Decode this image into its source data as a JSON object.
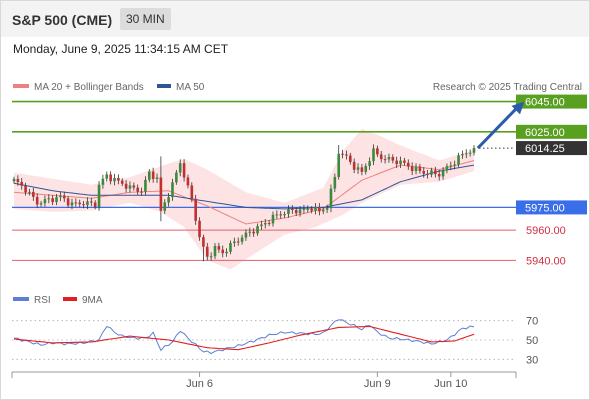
{
  "header": {
    "instrument": "S&P 500 (CME)",
    "interval": "30 MIN",
    "timestamp": "Monday, June 9, 2025 11:34:15 AM CET"
  },
  "colors": {
    "resistance": "#5aa020",
    "current": "#333333",
    "pivot": "#3a6ee8",
    "support": "#e06070",
    "band_fill": "#fde3e3",
    "ma20": "#f08080",
    "ma50": "#2f5597",
    "candle_up": "#3b8a3b",
    "candle_down": "#c03030",
    "rsi": "#5b7fd6",
    "rsi_ma": "#e02020",
    "arrow": "#2a5caa"
  },
  "chart_data": [
    {
      "type": "candlestick",
      "title": "",
      "legend": [
        "MA 20 + Bollinger Bands",
        "MA 50"
      ],
      "credit": "Research © 2025 Trading Central",
      "ylim": [
        5925,
        6052
      ],
      "x_ticks": [
        {
          "label": "Jun 6",
          "index": 48
        },
        {
          "label": "Jun 9",
          "index": 94
        },
        {
          "label": "Jun 10",
          "index": 113
        }
      ],
      "levels": [
        {
          "label": "6045.00",
          "value": 6045,
          "kind": "resistance"
        },
        {
          "label": "6025.00",
          "value": 6025,
          "kind": "resistance"
        },
        {
          "label": "6014.25",
          "value": 6014.25,
          "kind": "current"
        },
        {
          "label": "5975.00",
          "value": 5975,
          "kind": "pivot"
        },
        {
          "label": "5960.00",
          "value": 5960,
          "kind": "support"
        },
        {
          "label": "5940.00",
          "value": 5940,
          "kind": "support"
        }
      ],
      "close_pivots": [
        [
          0,
          5993
        ],
        [
          3,
          5987
        ],
        [
          6,
          5978
        ],
        [
          9,
          5980
        ],
        [
          12,
          5982
        ],
        [
          15,
          5977
        ],
        [
          18,
          5978
        ],
        [
          21,
          5977
        ],
        [
          22,
          5990
        ],
        [
          24,
          5996
        ],
        [
          27,
          5992
        ],
        [
          30,
          5988
        ],
        [
          33,
          5986
        ],
        [
          35,
          5998
        ],
        [
          37,
          5994
        ],
        [
          38,
          5972
        ],
        [
          40,
          5984
        ],
        [
          41,
          5990
        ],
        [
          43,
          6005
        ],
        [
          44,
          5996
        ],
        [
          46,
          5980
        ],
        [
          47,
          5968
        ],
        [
          48,
          5955
        ],
        [
          49,
          5948
        ],
        [
          50,
          5942
        ],
        [
          52,
          5948
        ],
        [
          54,
          5945
        ],
        [
          57,
          5952
        ],
        [
          60,
          5957
        ],
        [
          64,
          5963
        ],
        [
          68,
          5970
        ],
        [
          72,
          5973
        ],
        [
          75,
          5973
        ],
        [
          77,
          5975
        ],
        [
          79,
          5972
        ],
        [
          81,
          5976
        ],
        [
          83,
          5995
        ],
        [
          84,
          6012
        ],
        [
          86,
          6008
        ],
        [
          88,
          6002
        ],
        [
          90,
          5998
        ],
        [
          93,
          6012
        ],
        [
          95,
          6008
        ],
        [
          98,
          6006
        ],
        [
          100,
          6005
        ],
        [
          103,
          6001
        ],
        [
          106,
          5998
        ],
        [
          110,
          5997
        ],
        [
          113,
          6003
        ],
        [
          116,
          6010
        ],
        [
          119,
          6014
        ]
      ],
      "ma20_pivots": [
        [
          0,
          5985
        ],
        [
          10,
          5983
        ],
        [
          20,
          5981
        ],
        [
          30,
          5985
        ],
        [
          40,
          5986
        ],
        [
          50,
          5976
        ],
        [
          60,
          5964
        ],
        [
          70,
          5968
        ],
        [
          80,
          5974
        ],
        [
          90,
          5993
        ],
        [
          100,
          6003
        ],
        [
          110,
          6000
        ],
        [
          119,
          6006
        ]
      ],
      "ma50_pivots": [
        [
          0,
          5991
        ],
        [
          10,
          5986
        ],
        [
          20,
          5983
        ],
        [
          30,
          5983
        ],
        [
          40,
          5983
        ],
        [
          50,
          5979
        ],
        [
          60,
          5975
        ],
        [
          70,
          5974
        ],
        [
          80,
          5975
        ],
        [
          90,
          5980
        ],
        [
          100,
          5992
        ],
        [
          110,
          5999
        ],
        [
          119,
          6003
        ]
      ],
      "band_upper_pivots": [
        [
          0,
          5998
        ],
        [
          10,
          5994
        ],
        [
          20,
          5990
        ],
        [
          30,
          5995
        ],
        [
          40,
          6004
        ],
        [
          44,
          6007
        ],
        [
          50,
          6000
        ],
        [
          60,
          5985
        ],
        [
          70,
          5978
        ],
        [
          80,
          5988
        ],
        [
          85,
          6012
        ],
        [
          90,
          6027
        ],
        [
          95,
          6022
        ],
        [
          100,
          6016
        ],
        [
          110,
          6006
        ],
        [
          119,
          6013
        ]
      ],
      "band_lower_pivots": [
        [
          0,
          5974
        ],
        [
          10,
          5972
        ],
        [
          20,
          5973
        ],
        [
          30,
          5978
        ],
        [
          38,
          5972
        ],
        [
          44,
          5962
        ],
        [
          50,
          5940
        ],
        [
          56,
          5934
        ],
        [
          62,
          5944
        ],
        [
          70,
          5957
        ],
        [
          78,
          5962
        ],
        [
          85,
          5970
        ],
        [
          90,
          5978
        ],
        [
          100,
          5990
        ],
        [
          110,
          5992
        ],
        [
          119,
          5999
        ]
      ],
      "forecast_arrow": {
        "from": [
          120,
          6014.25
        ],
        "to": [
          132,
          6045
        ]
      }
    },
    {
      "type": "line",
      "title": "",
      "legend": [
        "RSI",
        "9MA"
      ],
      "ylim": [
        20,
        80
      ],
      "y_ticks": [
        30,
        50,
        70
      ],
      "rsi_pivots": [
        [
          0,
          52
        ],
        [
          4,
          48
        ],
        [
          7,
          45
        ],
        [
          10,
          47
        ],
        [
          14,
          46
        ],
        [
          18,
          47
        ],
        [
          22,
          50
        ],
        [
          24,
          65
        ],
        [
          26,
          58
        ],
        [
          28,
          54
        ],
        [
          31,
          52
        ],
        [
          34,
          52
        ],
        [
          36,
          57
        ],
        [
          38,
          40
        ],
        [
          41,
          48
        ],
        [
          43,
          60
        ],
        [
          45,
          52
        ],
        [
          47,
          45
        ],
        [
          49,
          38
        ],
        [
          51,
          37
        ],
        [
          54,
          40
        ],
        [
          58,
          44
        ],
        [
          62,
          49
        ],
        [
          66,
          55
        ],
        [
          70,
          58
        ],
        [
          74,
          57
        ],
        [
          78,
          56
        ],
        [
          80,
          57
        ],
        [
          82,
          65
        ],
        [
          84,
          72
        ],
        [
          86,
          68
        ],
        [
          88,
          65
        ],
        [
          90,
          61
        ],
        [
          92,
          66
        ],
        [
          94,
          58
        ],
        [
          97,
          52
        ],
        [
          100,
          51
        ],
        [
          104,
          49
        ],
        [
          108,
          46
        ],
        [
          112,
          50
        ],
        [
          116,
          62
        ],
        [
          119,
          64
        ]
      ],
      "ma_pivots": [
        [
          0,
          51
        ],
        [
          10,
          47
        ],
        [
          20,
          48
        ],
        [
          30,
          54
        ],
        [
          40,
          50
        ],
        [
          50,
          42
        ],
        [
          58,
          40
        ],
        [
          66,
          47
        ],
        [
          74,
          55
        ],
        [
          84,
          63
        ],
        [
          92,
          64
        ],
        [
          100,
          56
        ],
        [
          108,
          48
        ],
        [
          114,
          49
        ],
        [
          119,
          56
        ]
      ]
    }
  ]
}
